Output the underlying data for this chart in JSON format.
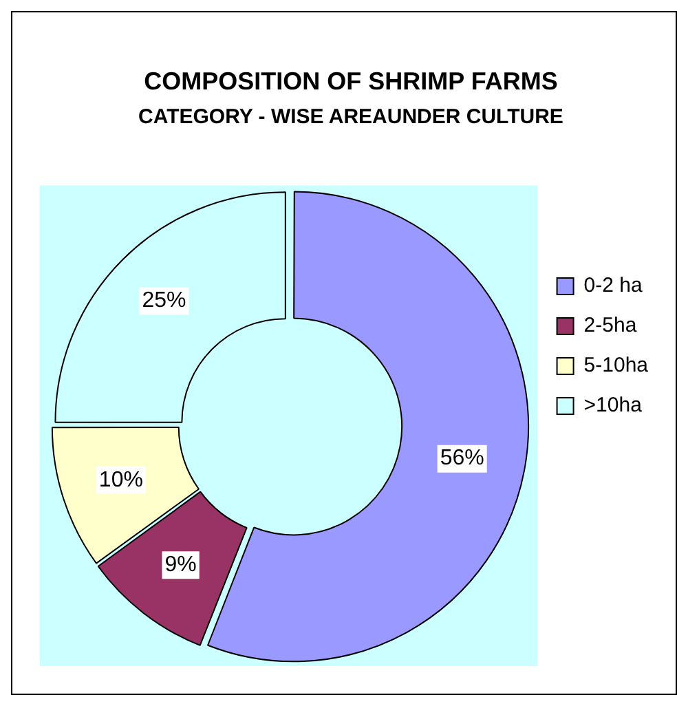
{
  "chart_data": {
    "type": "donut",
    "title": "COMPOSITION OF SHRIMP FARMS",
    "subtitle": "CATEGORY - WISE AREAUNDER CULTURE",
    "categories": [
      "0-2 ha",
      "2-5ha",
      "5-10ha",
      ">10ha"
    ],
    "values": [
      56,
      9,
      10,
      25
    ],
    "colors": [
      "#9999ff",
      "#993366",
      "#ffffcc",
      "#ccffff"
    ],
    "value_labels": [
      "56%",
      "9%",
      "10%",
      "25%"
    ],
    "legend": "right"
  }
}
